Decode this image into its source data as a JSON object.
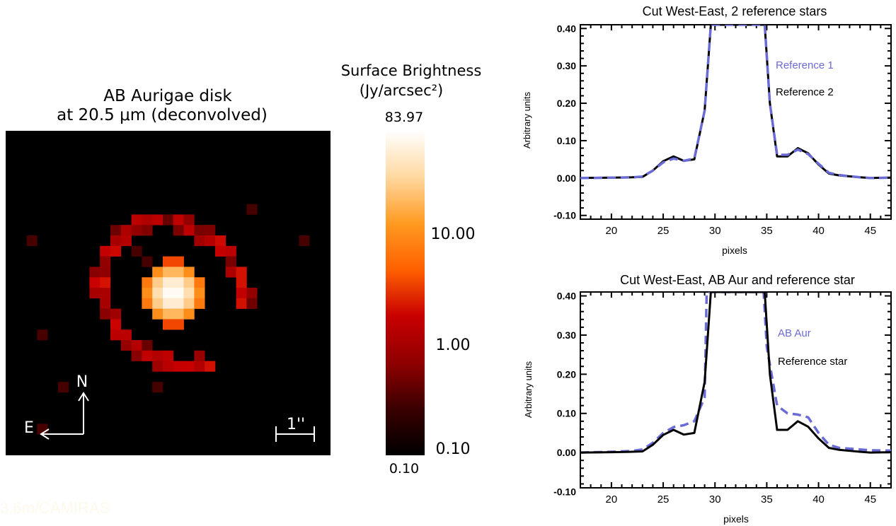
{
  "image_panel": {
    "title_line1": "AB Aurigae disk",
    "title_line2": "at 20.5 μm (deconvolved)",
    "compass_north": "N",
    "compass_east": "E",
    "scale_label": "1''",
    "background_color": "#000000"
  },
  "colorbar": {
    "title_line1": "Surface Brightness",
    "title_line2": "(Jy/arcsec²)",
    "top_value": "83.97",
    "bottom_value": "0.10",
    "tick_labels": [
      "10.00",
      "1.00",
      "0.10"
    ],
    "tick_values": [
      10,
      1,
      0.1
    ],
    "min": 0.1,
    "max": 83.97,
    "scale": "log",
    "colormap": [
      "#000000",
      "#3a0000",
      "#900000",
      "#c80000",
      "#ff6000",
      "#ff9a20",
      "#ffd8a0",
      "#ffffff"
    ]
  },
  "chart_data": [
    {
      "type": "line",
      "title": "Cut West-East, 2 reference stars",
      "xlabel": "pixels",
      "ylabel": "Arbitrary units",
      "xlim": [
        17,
        47
      ],
      "ylim": [
        -0.11,
        0.41
      ],
      "x_ticks": [
        20,
        25,
        30,
        35,
        40,
        45
      ],
      "y_ticks": [
        -0.1,
        0.0,
        0.1,
        0.2,
        0.3,
        0.4
      ],
      "y_tick_labels": [
        "-0.10",
        "0.00",
        "0.10",
        "0.20",
        "0.30",
        "0.40"
      ],
      "legend_position": "upper-right, inside",
      "series": [
        {
          "name": "Reference 1",
          "color": "#6b6bd6",
          "style": "dashed",
          "x": [
            17,
            20,
            22,
            23,
            24,
            25,
            26,
            27,
            28,
            29,
            29.6,
            34.8,
            35.3,
            36,
            37,
            38,
            39,
            40,
            41,
            42,
            44,
            45,
            47
          ],
          "y": [
            0.0,
            0.001,
            0.002,
            0.004,
            0.02,
            0.042,
            0.052,
            0.046,
            0.052,
            0.18,
            0.41,
            0.41,
            0.2,
            0.062,
            0.062,
            0.076,
            0.064,
            0.038,
            0.014,
            0.008,
            0.002,
            0.0,
            0.001
          ]
        },
        {
          "name": "Reference 2",
          "color": "#000000",
          "style": "solid",
          "x": [
            17,
            20,
            22,
            23,
            24,
            25,
            26,
            27,
            28,
            29,
            29.6,
            34.8,
            35.3,
            36,
            37,
            38,
            39,
            40,
            41,
            42,
            44,
            45,
            47
          ],
          "y": [
            0.0,
            0.001,
            0.002,
            0.003,
            0.02,
            0.045,
            0.058,
            0.046,
            0.05,
            0.18,
            0.41,
            0.41,
            0.2,
            0.058,
            0.058,
            0.08,
            0.066,
            0.036,
            0.012,
            0.007,
            0.002,
            0.0,
            0.001
          ]
        }
      ]
    },
    {
      "type": "line",
      "title": "Cut West-East, AB Aur and reference star",
      "xlabel": "pixels",
      "ylabel": "Arbitrary units",
      "xlim": [
        17,
        47
      ],
      "ylim": [
        -0.09,
        0.41
      ],
      "x_ticks": [
        20,
        25,
        30,
        35,
        40,
        45
      ],
      "y_ticks": [
        -0.1,
        0.0,
        0.1,
        0.2,
        0.3,
        0.4
      ],
      "y_tick_labels": [
        "-0.10",
        "0.00",
        "0.10",
        "0.20",
        "0.30",
        "0.40"
      ],
      "legend_position": "upper-right, inside",
      "series": [
        {
          "name": "AB Aur",
          "color": "#6b6bd6",
          "style": "dashed",
          "x": [
            17,
            20,
            22,
            23,
            24,
            25,
            26,
            27,
            28,
            29,
            29.2,
            34.7,
            35,
            36,
            37,
            38,
            39,
            40,
            41,
            42,
            44,
            45,
            47
          ],
          "y": [
            0.0,
            0.002,
            0.004,
            0.008,
            0.025,
            0.05,
            0.065,
            0.07,
            0.08,
            0.14,
            0.41,
            0.41,
            0.27,
            0.12,
            0.1,
            0.097,
            0.09,
            0.05,
            0.02,
            0.012,
            0.008,
            0.006,
            0.005
          ]
        },
        {
          "name": "Reference star",
          "color": "#000000",
          "style": "solid",
          "x": [
            17,
            20,
            22,
            23,
            24,
            25,
            26,
            27,
            28,
            29,
            29.6,
            34.8,
            35.3,
            36,
            37,
            38,
            39,
            40,
            41,
            42,
            44,
            45,
            47
          ],
          "y": [
            0.0,
            0.001,
            0.002,
            0.003,
            0.02,
            0.045,
            0.058,
            0.046,
            0.05,
            0.18,
            0.41,
            0.41,
            0.2,
            0.058,
            0.058,
            0.08,
            0.066,
            0.036,
            0.012,
            0.007,
            0.002,
            0.0,
            0.001
          ]
        }
      ]
    }
  ],
  "watermark": "3.6m/CAMIRAS"
}
